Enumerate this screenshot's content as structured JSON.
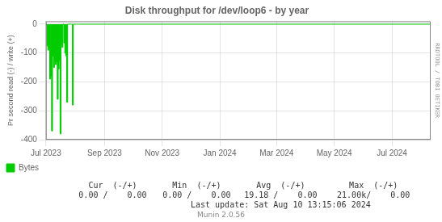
{
  "chart_data": {
    "type": "area",
    "title": "Disk throughput for /dev/loop6 - by year",
    "ylabel": "Pr second read (-) / write (+)",
    "x": [
      1688169600,
      1688256000,
      1688342400,
      1688428800,
      1688515200,
      1688601600,
      1688688000,
      1688774400,
      1688860800,
      1688947200,
      1689033600,
      1689120000,
      1689206400,
      1689292800,
      1689379200,
      1689465600,
      1689552000,
      1689638400,
      1689724800,
      1689811200,
      1689897600,
      1689984000,
      1690070400,
      1690156800,
      1690243200,
      1690329600,
      1690416000,
      1690502400,
      1690588800,
      1690675200,
      1690761600,
      1690848000,
      1690934400,
      1691020800,
      1691107200,
      1691193600,
      1691280000,
      1723334400
    ],
    "series": [
      {
        "name": "Bytes",
        "color": "#00cc00",
        "values": [
          0,
          -75,
          -90,
          -85,
          -190,
          -180,
          -370,
          -110,
          -150,
          -130,
          -140,
          -130,
          -260,
          -155,
          -125,
          -380,
          -70,
          -80,
          0,
          -65,
          -100,
          -110,
          -270,
          0,
          0,
          0,
          0,
          0,
          -280,
          0,
          0,
          0,
          0,
          0,
          0,
          0,
          0,
          0
        ]
      }
    ],
    "xlim": [
      1688169600,
      1723334400
    ],
    "xticks": [
      {
        "value": 1688169600,
        "label": "Jul 2023"
      },
      {
        "value": 1693526400,
        "label": "Sep 2023"
      },
      {
        "value": 1698796800,
        "label": "Nov 2023"
      },
      {
        "value": 1704067200,
        "label": "Jan 2024"
      },
      {
        "value": 1709251200,
        "label": "Mar 2024"
      },
      {
        "value": 1714521600,
        "label": "May 2024"
      },
      {
        "value": 1719792000,
        "label": "Jul 2024"
      }
    ],
    "ylim": [
      -400,
      10
    ],
    "yticks": [
      0,
      -100,
      -200,
      -300,
      -400
    ],
    "grid": true,
    "legend": "bottom",
    "line_style": "steps",
    "annotations": [
      "Cur  (-/+)",
      "Min  (-/+)",
      "Avg  (-/+)",
      "Max  (-/+)",
      "0.00 /    0.00",
      "0.00 /    0.00",
      "19.18 /    0.00",
      "21.00k/    0.00",
      "Last update: Sat Aug 10 13:15:06 2024",
      "Munin 2.0.56",
      "RRDTOOL / TOBI OETIKER"
    ]
  }
}
